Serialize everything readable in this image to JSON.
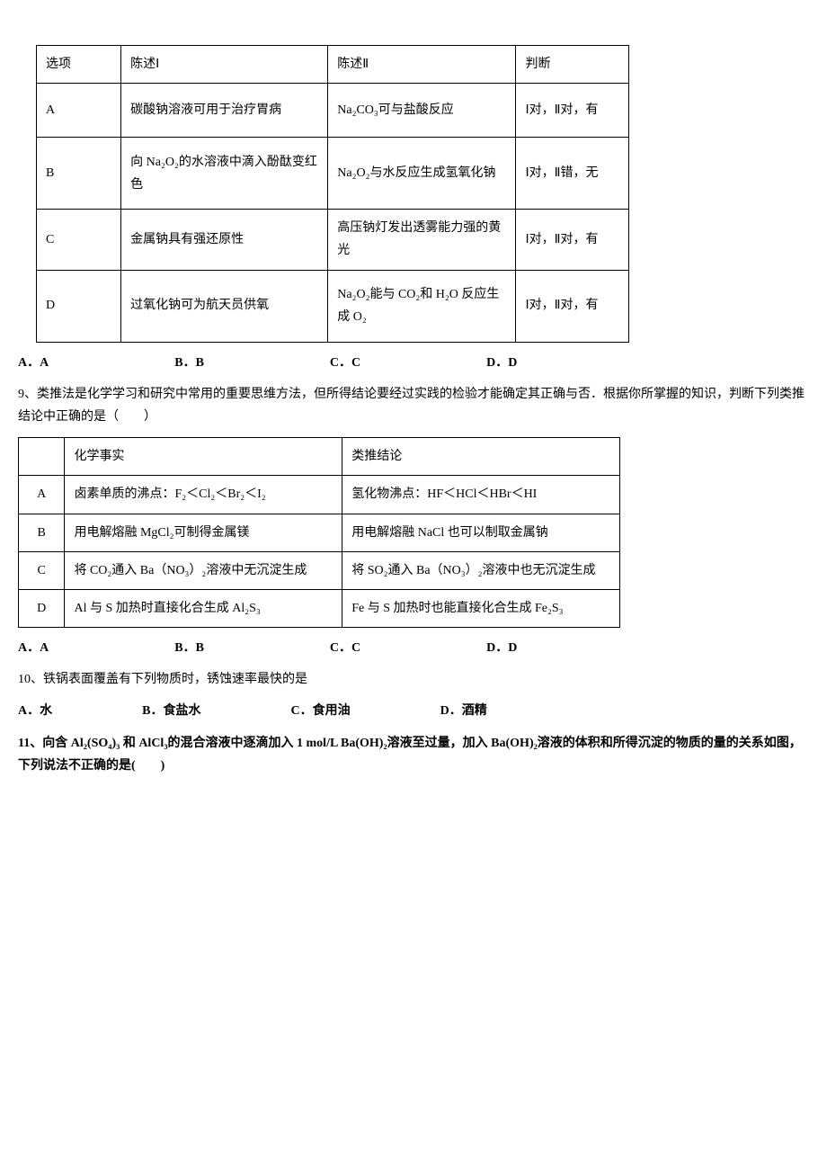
{
  "table1": {
    "headers": [
      "选项",
      "陈述Ⅰ",
      "陈述Ⅱ",
      "判断"
    ],
    "rows": [
      {
        "opt": "A",
        "s1": "碳酸钠溶液可用于治疗胃病",
        "s2": "Na₂CO₃可与盐酸反应",
        "judge": "Ⅰ对，Ⅱ对，有"
      },
      {
        "opt": "B",
        "s1": "向 Na₂O₂的水溶液中滴入酚酞变红色",
        "s2": "Na₂O₂与水反应生成氢氧化钠",
        "judge": "Ⅰ对，Ⅱ错，无"
      },
      {
        "opt": "C",
        "s1": "金属钠具有强还原性",
        "s2": "高压钠灯发出透雾能力强的黄光",
        "judge": "Ⅰ对，Ⅱ对，有"
      },
      {
        "opt": "D",
        "s1": "过氧化钠可为航天员供氧",
        "s2": "Na₂O₂能与 CO₂和 H₂O 反应生成 O₂",
        "judge": "Ⅰ对，Ⅱ对，有"
      }
    ]
  },
  "options8": {
    "a": "A．A",
    "b": "B．B",
    "c": "C．C",
    "d": "D．D"
  },
  "q9": "9、类推法是化学学习和研究中常用的重要思维方法，但所得结论要经过实践的检验才能确定其正确与否．根据你所掌握的知识，判断下列类推结论中正确的是（　　）",
  "table2": {
    "headers": [
      "",
      "化学事实",
      "类推结论"
    ],
    "rows": [
      {
        "opt": "A",
        "fact": "卤素单质的沸点：F₂＜Cl₂＜Br₂＜I₂",
        "conc": "氢化物沸点：HF＜HCl＜HBr＜HI"
      },
      {
        "opt": "B",
        "fact": "用电解熔融 MgCl₂可制得金属镁",
        "conc": "用电解熔融 NaCl 也可以制取金属钠"
      },
      {
        "opt": "C",
        "fact": "将 CO₂通入 Ba（NO₃）₂溶液中无沉淀生成",
        "conc": "将 SO₂通入 Ba（NO₃）₂溶液中也无沉淀生成"
      },
      {
        "opt": "D",
        "fact": "Al 与 S 加热时直接化合生成 Al₂S₃",
        "conc": "Fe 与 S 加热时也能直接化合生成 Fe₂S₃"
      }
    ]
  },
  "options9": {
    "a": "A．A",
    "b": "B．B",
    "c": "C．C",
    "d": "D．D"
  },
  "q10": "10、铁锅表面覆盖有下列物质时，锈蚀速率最快的是",
  "options10": {
    "a": "A．水",
    "b": "B．食盐水",
    "c": "C．食用油",
    "d": "D．酒精"
  },
  "q11": "11、向含 Al₂(SO₄)₃ 和 AlCl₃的混合溶液中逐滴加入 1 mol/L Ba(OH)₂溶液至过量，加入 Ba(OH)₂溶液的体积和所得沉淀的物质的量的关系如图，下列说法不正确的是(　　)"
}
